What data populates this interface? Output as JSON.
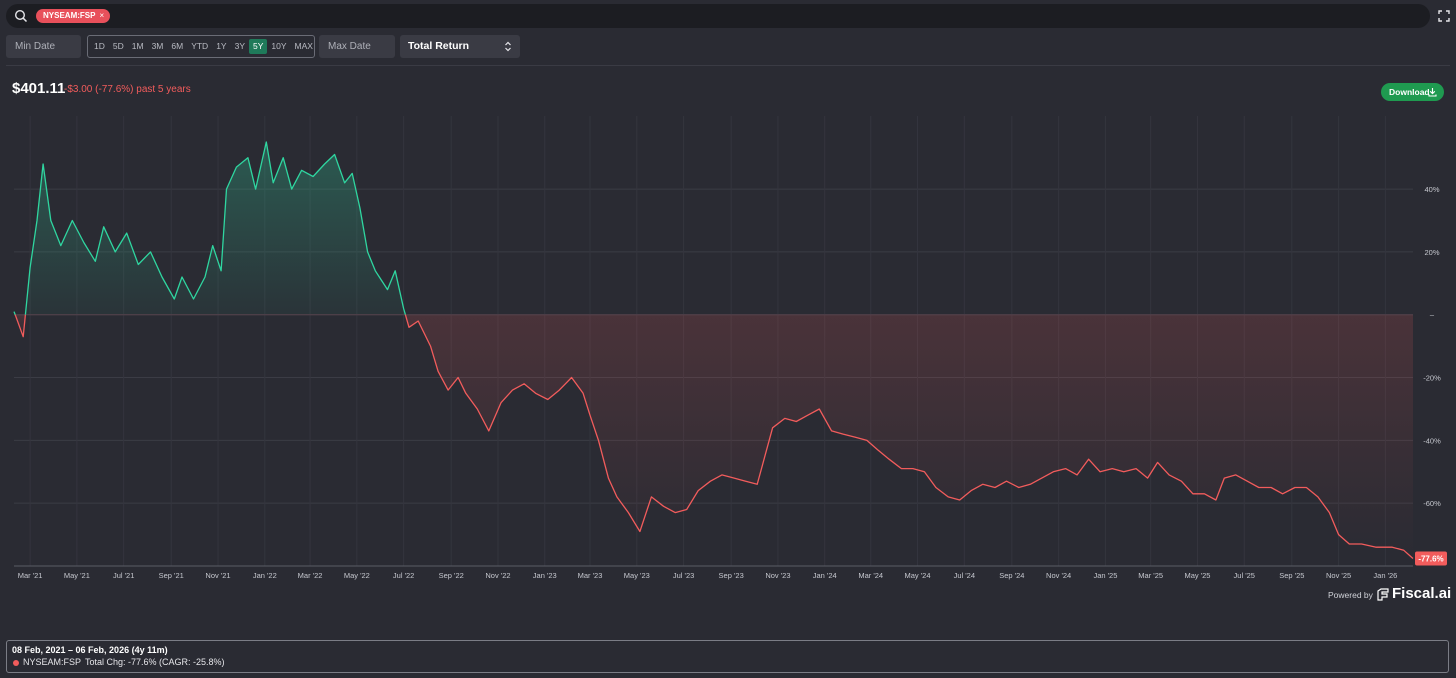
{
  "search": {
    "ticker_chip": "NYSEAM:FSP",
    "chip_close": "×"
  },
  "controls": {
    "min_date_placeholder": "Min Date",
    "max_date_placeholder": "Max Date",
    "metric": "Total Return",
    "ranges": [
      "1D",
      "5D",
      "1M",
      "3M",
      "6M",
      "YTD",
      "1Y",
      "3Y",
      "5Y",
      "10Y",
      "MAX"
    ],
    "active_range": "5Y"
  },
  "summary": {
    "price": "$401.11",
    "change": "-$3.00 (-77.6%) past 5 years",
    "download_label": "Download"
  },
  "colors": {
    "positive": "#2fd6a0",
    "negative": "#f25c5c",
    "accent": "#1f9a50"
  },
  "chart_data": {
    "type": "area",
    "yformat": "percent",
    "ylim": [
      -80,
      62
    ],
    "y_ticks": [
      40,
      20,
      0,
      -20,
      -40,
      -60
    ],
    "y_tick_labels": [
      "40%",
      "20%",
      "–",
      "-20%",
      "-40%",
      "-60%"
    ],
    "x_tick_labels": [
      "Mar '21",
      "May '21",
      "Jul '21",
      "Sep '21",
      "Nov '21",
      "Jan '22",
      "Mar '22",
      "May '22",
      "Jul '22",
      "Sep '22",
      "Nov '22",
      "Jan '23",
      "Mar '23",
      "May '23",
      "Jul '23",
      "Sep '23",
      "Nov '23",
      "Jan '24",
      "Mar '24",
      "May '24",
      "Jul '24",
      "Sep '24",
      "Nov '24",
      "Jan '25",
      "Mar '25",
      "May '25",
      "Jul '25",
      "Sep '25",
      "Nov '25",
      "Jan '26"
    ],
    "last_value_label": "-77.6%",
    "grid": true,
    "series": [
      {
        "values": [
          [
            "2021-02-08",
            1
          ],
          [
            "2021-02-20",
            -7
          ],
          [
            "2021-03-01",
            15
          ],
          [
            "2021-03-10",
            30
          ],
          [
            "2021-03-18",
            48
          ],
          [
            "2021-03-28",
            30
          ],
          [
            "2021-04-10",
            22
          ],
          [
            "2021-04-25",
            30
          ],
          [
            "2021-05-10",
            23
          ],
          [
            "2021-05-25",
            17
          ],
          [
            "2021-06-05",
            28
          ],
          [
            "2021-06-20",
            20
          ],
          [
            "2021-07-05",
            26
          ],
          [
            "2021-07-20",
            16
          ],
          [
            "2021-08-05",
            20
          ],
          [
            "2021-08-20",
            12
          ],
          [
            "2021-09-05",
            5
          ],
          [
            "2021-09-15",
            12
          ],
          [
            "2021-09-30",
            5
          ],
          [
            "2021-10-15",
            12
          ],
          [
            "2021-10-25",
            22
          ],
          [
            "2021-11-05",
            14
          ],
          [
            "2021-11-12",
            40
          ],
          [
            "2021-11-25",
            47
          ],
          [
            "2021-12-10",
            50
          ],
          [
            "2021-12-20",
            40
          ],
          [
            "2022-01-03",
            55
          ],
          [
            "2022-01-12",
            42
          ],
          [
            "2022-01-25",
            50
          ],
          [
            "2022-02-05",
            40
          ],
          [
            "2022-02-18",
            46
          ],
          [
            "2022-03-05",
            44
          ],
          [
            "2022-03-20",
            48
          ],
          [
            "2022-04-02",
            51
          ],
          [
            "2022-04-15",
            42
          ],
          [
            "2022-04-25",
            45
          ],
          [
            "2022-05-05",
            34
          ],
          [
            "2022-05-15",
            20
          ],
          [
            "2022-05-25",
            14
          ],
          [
            "2022-06-10",
            8
          ],
          [
            "2022-06-20",
            14
          ],
          [
            "2022-07-01",
            2
          ],
          [
            "2022-07-08",
            -4
          ],
          [
            "2022-07-20",
            -2
          ],
          [
            "2022-08-05",
            -10
          ],
          [
            "2022-08-15",
            -18
          ],
          [
            "2022-08-28",
            -24
          ],
          [
            "2022-09-10",
            -20
          ],
          [
            "2022-09-20",
            -25
          ],
          [
            "2022-10-05",
            -30
          ],
          [
            "2022-10-20",
            -37
          ],
          [
            "2022-11-05",
            -28
          ],
          [
            "2022-11-20",
            -24
          ],
          [
            "2022-12-05",
            -22
          ],
          [
            "2022-12-20",
            -25
          ],
          [
            "2023-01-05",
            -27
          ],
          [
            "2023-01-20",
            -24
          ],
          [
            "2023-02-05",
            -20
          ],
          [
            "2023-02-20",
            -25
          ],
          [
            "2023-03-01",
            -32
          ],
          [
            "2023-03-12",
            -40
          ],
          [
            "2023-03-25",
            -52
          ],
          [
            "2023-04-05",
            -58
          ],
          [
            "2023-04-20",
            -63
          ],
          [
            "2023-05-05",
            -69
          ],
          [
            "2023-05-20",
            -58
          ],
          [
            "2023-06-05",
            -61
          ],
          [
            "2023-06-20",
            -63
          ],
          [
            "2023-07-05",
            -62
          ],
          [
            "2023-07-20",
            -56
          ],
          [
            "2023-08-05",
            -53
          ],
          [
            "2023-08-20",
            -51
          ],
          [
            "2023-09-05",
            -52
          ],
          [
            "2023-09-20",
            -53
          ],
          [
            "2023-10-05",
            -54
          ],
          [
            "2023-10-15",
            -45
          ],
          [
            "2023-10-25",
            -36
          ],
          [
            "2023-11-10",
            -33
          ],
          [
            "2023-11-25",
            -34
          ],
          [
            "2023-12-10",
            -32
          ],
          [
            "2023-12-25",
            -30
          ],
          [
            "2024-01-10",
            -37
          ],
          [
            "2024-01-25",
            -38
          ],
          [
            "2024-02-10",
            -39
          ],
          [
            "2024-02-25",
            -40
          ],
          [
            "2024-03-10",
            -43
          ],
          [
            "2024-03-25",
            -46
          ],
          [
            "2024-04-10",
            -49
          ],
          [
            "2024-04-25",
            -49
          ],
          [
            "2024-05-10",
            -50
          ],
          [
            "2024-05-25",
            -55
          ],
          [
            "2024-06-10",
            -58
          ],
          [
            "2024-06-25",
            -59
          ],
          [
            "2024-07-10",
            -56
          ],
          [
            "2024-07-25",
            -54
          ],
          [
            "2024-08-10",
            -55
          ],
          [
            "2024-08-25",
            -53
          ],
          [
            "2024-09-10",
            -55
          ],
          [
            "2024-09-25",
            -54
          ],
          [
            "2024-10-10",
            -52
          ],
          [
            "2024-10-25",
            -50
          ],
          [
            "2024-11-10",
            -49
          ],
          [
            "2024-11-25",
            -51
          ],
          [
            "2024-12-10",
            -46
          ],
          [
            "2024-12-25",
            -50
          ],
          [
            "2025-01-10",
            -49
          ],
          [
            "2025-01-25",
            -50
          ],
          [
            "2025-02-10",
            -49
          ],
          [
            "2025-02-25",
            -52
          ],
          [
            "2025-03-10",
            -47
          ],
          [
            "2025-03-25",
            -51
          ],
          [
            "2025-04-10",
            -53
          ],
          [
            "2025-04-25",
            -57
          ],
          [
            "2025-05-10",
            -57
          ],
          [
            "2025-05-25",
            -59
          ],
          [
            "2025-06-05",
            -52
          ],
          [
            "2025-06-20",
            -51
          ],
          [
            "2025-07-05",
            -53
          ],
          [
            "2025-07-20",
            -55
          ],
          [
            "2025-08-05",
            -55
          ],
          [
            "2025-08-20",
            -57
          ],
          [
            "2025-09-05",
            -55
          ],
          [
            "2025-09-20",
            -55
          ],
          [
            "2025-10-05",
            -58
          ],
          [
            "2025-10-20",
            -63
          ],
          [
            "2025-11-01",
            -70
          ],
          [
            "2025-11-15",
            -73
          ],
          [
            "2025-12-01",
            -73
          ],
          [
            "2025-12-20",
            -74
          ],
          [
            "2026-01-10",
            -74
          ],
          [
            "2026-01-25",
            -75
          ],
          [
            "2026-02-06",
            -77.6
          ]
        ]
      }
    ]
  },
  "footer": {
    "powered_by": "Powered by",
    "brand": "Fiscal.ai"
  },
  "legend": {
    "date_range": "08 Feb, 2021 – 06 Feb, 2026 (4y 11m)",
    "ticker": "NYSEAM:FSP",
    "stats": "Total Chg: -77.6% (CAGR: -25.8%)"
  }
}
